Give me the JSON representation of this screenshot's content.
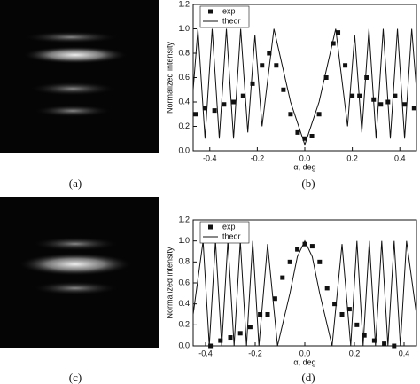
{
  "captions": [
    "(a)",
    "(b)",
    "(c)",
    "(d)"
  ],
  "chart_data": [
    {
      "type": "line",
      "y_label": "Normalized intensity",
      "x_label": "α, deg",
      "legend": "upper left",
      "xlim": [
        -0.47,
        0.47
      ],
      "ylim": [
        0,
        1.2
      ],
      "xticks": [
        -0.4,
        -0.2,
        {
          "value": 0,
          "label": "0.0"
        },
        0.2,
        0.4
      ],
      "yticks": [
        {
          "value": 0,
          "label": "0.0"
        },
        0.2,
        0.4,
        0.6,
        0.8,
        {
          "value": 1,
          "label": "1.0"
        },
        1.2
      ],
      "series": [
        {
          "name": "exp",
          "color": "#111111",
          "style": "markers",
          "x": [
            -0.46,
            -0.42,
            -0.38,
            -0.34,
            -0.3,
            -0.26,
            -0.22,
            -0.18,
            -0.15,
            -0.12,
            -0.09,
            -0.06,
            -0.03,
            0,
            0.03,
            0.06,
            0.09,
            0.12,
            0.14,
            0.17,
            0.2,
            0.23,
            0.26,
            0.29,
            0.32,
            0.35,
            0.38,
            0.42,
            0.46
          ],
          "values": [
            0.3,
            0.35,
            0.33,
            0.38,
            0.4,
            0.45,
            0.55,
            0.7,
            0.8,
            0.7,
            0.5,
            0.3,
            0.15,
            0.1,
            0.12,
            0.3,
            0.6,
            0.88,
            0.97,
            0.7,
            0.45,
            0.45,
            0.6,
            0.42,
            0.38,
            0.4,
            0.45,
            0.38,
            0.35
          ]
        },
        {
          "name": "theor",
          "color": "#111111",
          "style": "line",
          "x": [
            -0.47,
            -0.45,
            -0.42,
            -0.39,
            -0.36,
            -0.33,
            -0.3,
            -0.27,
            -0.24,
            -0.21,
            -0.18,
            -0.13,
            -0.06,
            0,
            0.06,
            0.13,
            0.18,
            0.21,
            0.24,
            0.27,
            0.3,
            0.33,
            0.36,
            0.39,
            0.42,
            0.45,
            0.47
          ],
          "values": [
            0.5,
            1.0,
            0.1,
            1.0,
            0.1,
            1.0,
            0.1,
            1.0,
            0.15,
            0.95,
            0.2,
            1.0,
            0.4,
            0.05,
            0.4,
            1.0,
            0.2,
            0.95,
            0.15,
            1.0,
            0.1,
            1.0,
            0.1,
            1.0,
            0.1,
            1.0,
            0.5
          ]
        }
      ]
    },
    {
      "type": "line",
      "y_label": "Normalized intensity",
      "x_label": "α, deg",
      "legend": "upper left",
      "xlim": [
        -0.45,
        0.45
      ],
      "ylim": [
        0,
        1.2
      ],
      "xticks": [
        -0.4,
        -0.2,
        {
          "value": 0,
          "label": "0.0"
        },
        0.2,
        0.4
      ],
      "yticks": [
        {
          "value": 0,
          "label": "0.0"
        },
        0.2,
        0.4,
        0.6,
        0.8,
        {
          "value": 1,
          "label": "1.0"
        },
        1.2
      ],
      "series": [
        {
          "name": "exp",
          "color": "#111111",
          "style": "markers",
          "x": [
            -0.38,
            -0.34,
            -0.3,
            -0.26,
            -0.22,
            -0.18,
            -0.15,
            -0.12,
            -0.09,
            -0.06,
            -0.03,
            0,
            0.03,
            0.06,
            0.09,
            0.12,
            0.15,
            0.18,
            0.21,
            0.24,
            0.28,
            0.32,
            0.36
          ],
          "values": [
            0,
            0.05,
            0.08,
            0.12,
            0.18,
            0.3,
            0.3,
            0.45,
            0.65,
            0.8,
            0.92,
            0.97,
            0.95,
            0.8,
            0.55,
            0.4,
            0.3,
            0.35,
            0.2,
            0.1,
            0.05,
            0.02,
            0
          ]
        },
        {
          "name": "theor",
          "color": "#111111",
          "style": "line",
          "x": [
            -0.45,
            -0.41,
            -0.385,
            -0.36,
            -0.335,
            -0.31,
            -0.285,
            -0.26,
            -0.235,
            -0.21,
            -0.185,
            -0.15,
            -0.11,
            -0.06,
            -0.03,
            0,
            0.03,
            0.06,
            0.11,
            0.15,
            0.185,
            0.21,
            0.235,
            0.26,
            0.285,
            0.31,
            0.335,
            0.36,
            0.385,
            0.41,
            0.45
          ],
          "values": [
            0.3,
            1.0,
            0,
            1.0,
            0,
            1.0,
            0,
            1.0,
            0,
            1.0,
            0,
            0.97,
            0,
            0.5,
            0.85,
            1.0,
            0.85,
            0.5,
            0,
            0.97,
            0,
            1.0,
            0,
            1.0,
            0,
            1.0,
            0,
            1.0,
            0,
            1.0,
            0.3
          ]
        }
      ]
    }
  ]
}
